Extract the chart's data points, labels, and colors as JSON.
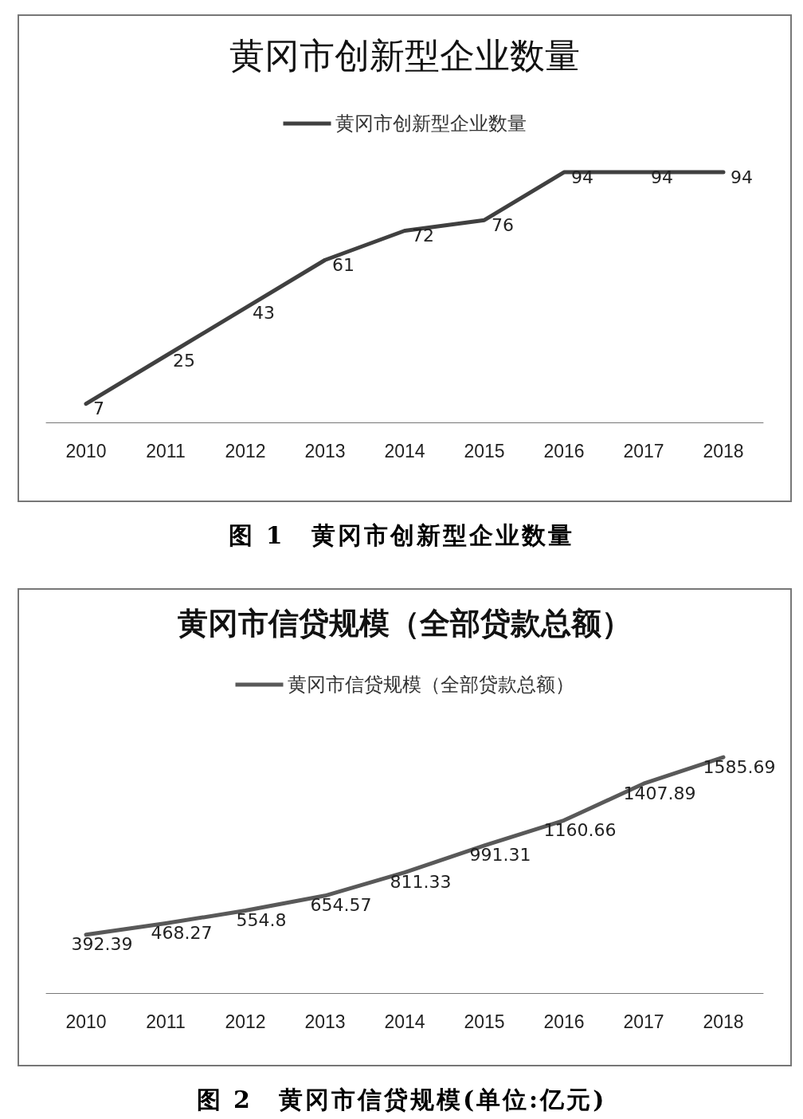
{
  "chart_data": [
    {
      "type": "line",
      "title": "黄冈市创新型企业数量",
      "categories": [
        "2010",
        "2011",
        "2012",
        "2013",
        "2014",
        "2015",
        "2016",
        "2017",
        "2018"
      ],
      "series": [
        {
          "name": "黄冈市创新型企业数量",
          "color": "#404040",
          "values": [
            7,
            25,
            43,
            61,
            72,
            76,
            94,
            94,
            94
          ]
        }
      ],
      "data_labels": true,
      "legend": "top",
      "grid": false,
      "marker": "none",
      "line_style": "solid",
      "annotations": [
        "图 1　黄冈市创新型企业数量"
      ]
    },
    {
      "type": "line",
      "title": "黄冈市信贷规模（全部贷款总额）",
      "categories": [
        "2010",
        "2011",
        "2012",
        "2013",
        "2014",
        "2015",
        "2016",
        "2017",
        "2018"
      ],
      "series": [
        {
          "name": "黄冈市信贷规模（全部贷款总额）",
          "color": "#595959",
          "values": [
            392.39,
            468.27,
            554.8,
            654.57,
            811.33,
            991.31,
            1160.66,
            1407.89,
            1585.69
          ]
        }
      ],
      "data_labels": true,
      "legend": "top",
      "grid": false,
      "marker": "none",
      "line_style": "solid",
      "annotations": [
        "图 2　黄冈市信贷规模(单位:亿元)"
      ]
    }
  ]
}
